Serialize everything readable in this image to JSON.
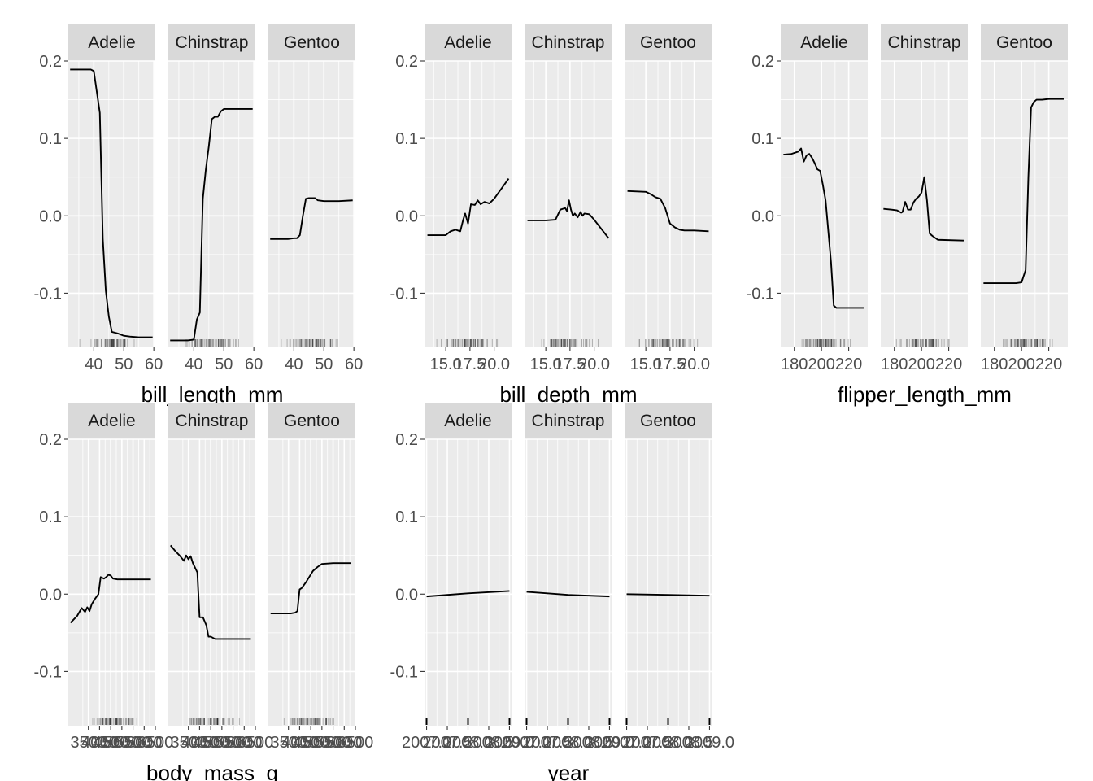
{
  "chart_data": [
    {
      "type": "line",
      "xlabel": "bill_length_mm",
      "ylabel": "",
      "ylim": [
        -0.17,
        0.2
      ],
      "yticks": [
        -0.1,
        0.0,
        0.1,
        0.2
      ],
      "ytick_labels": [
        "-0.1",
        "0.0",
        "0.1",
        "0.2"
      ],
      "xlim": [
        31.5,
        60.5
      ],
      "xticks": [
        40,
        50,
        60
      ],
      "xtick_labels": [
        "40",
        "50",
        "60"
      ],
      "legend": "none",
      "grid": true,
      "rug": true,
      "panels": [
        {
          "facet": "Adelie",
          "x": [
            32.1,
            35,
            37,
            39,
            40,
            41,
            42,
            43,
            44,
            45,
            46,
            48,
            50,
            52,
            55,
            59.6
          ],
          "y": [
            0.189,
            0.189,
            0.189,
            0.189,
            0.187,
            0.16,
            0.133,
            -0.03,
            -0.097,
            -0.13,
            -0.15,
            -0.152,
            -0.155,
            -0.156,
            -0.157,
            -0.157
          ]
        },
        {
          "facet": "Chinstrap",
          "x": [
            32.1,
            35,
            38,
            40,
            41,
            42,
            43,
            44,
            45,
            46,
            47,
            48,
            49,
            50,
            51,
            55,
            59.6
          ],
          "y": [
            -0.161,
            -0.161,
            -0.161,
            -0.16,
            -0.134,
            -0.125,
            0.022,
            0.06,
            0.09,
            0.125,
            0.128,
            0.128,
            0.135,
            0.138,
            0.138,
            0.138,
            0.138
          ]
        },
        {
          "facet": "Gentoo",
          "x": [
            32.1,
            38,
            40,
            41,
            42,
            43,
            44,
            45,
            46,
            47,
            48,
            50,
            55,
            59.6
          ],
          "y": [
            -0.03,
            -0.03,
            -0.029,
            -0.029,
            -0.025,
            0.0,
            0.022,
            0.023,
            0.023,
            0.023,
            0.02,
            0.019,
            0.019,
            0.02
          ]
        }
      ]
    },
    {
      "type": "line",
      "xlabel": "bill_depth_mm",
      "ylabel": "",
      "ylim": [
        -0.17,
        0.2
      ],
      "yticks": [
        -0.1,
        0.0,
        0.1,
        0.2
      ],
      "ytick_labels": [
        "-0.1",
        "0.0",
        "0.1",
        "0.2"
      ],
      "xlim": [
        12.8,
        21.8
      ],
      "xticks": [
        15.0,
        17.5,
        20.0
      ],
      "xtick_labels": [
        "15.0",
        "17.5",
        "20.0"
      ],
      "legend": "none",
      "grid": true,
      "rug": true,
      "panels": [
        {
          "facet": "Adelie",
          "x": [
            13.1,
            14,
            15,
            15.5,
            16,
            16.5,
            16.8,
            17,
            17.3,
            17.6,
            18,
            18.3,
            18.6,
            19,
            19.5,
            20,
            21.5
          ],
          "y": [
            -0.025,
            -0.025,
            -0.025,
            -0.02,
            -0.018,
            -0.02,
            -0.005,
            0.003,
            -0.01,
            0.015,
            0.014,
            0.02,
            0.015,
            0.018,
            0.016,
            0.022,
            0.048
          ]
        },
        {
          "facet": "Chinstrap",
          "x": [
            13.1,
            15,
            16,
            16.5,
            17,
            17.2,
            17.4,
            17.6,
            17.8,
            18,
            18.3,
            18.6,
            18.8,
            19,
            19.5,
            20,
            21.5
          ],
          "y": [
            -0.006,
            -0.006,
            -0.005,
            0.008,
            0.01,
            0.006,
            0.02,
            0.008,
            0.0,
            0.003,
            -0.002,
            0.005,
            0.0,
            0.003,
            0.002,
            -0.005,
            -0.029
          ]
        },
        {
          "facet": "Gentoo",
          "x": [
            13.1,
            15,
            15.5,
            16,
            16.5,
            17,
            17.5,
            18,
            18.5,
            19,
            20,
            21.5
          ],
          "y": [
            0.032,
            0.031,
            0.028,
            0.024,
            0.022,
            0.01,
            -0.01,
            -0.015,
            -0.018,
            -0.019,
            -0.019,
            -0.02
          ]
        }
      ]
    },
    {
      "type": "line",
      "xlabel": "flipper_length_mm",
      "ylabel": "",
      "ylim": [
        -0.17,
        0.2
      ],
      "yticks": [
        -0.1,
        0.0,
        0.1,
        0.2
      ],
      "ytick_labels": [
        "-0.1",
        "0.0",
        "0.1",
        "0.2"
      ],
      "xlim": [
        170,
        234
      ],
      "xticks": [
        180,
        200,
        220
      ],
      "xtick_labels": [
        "180",
        "200",
        "220"
      ],
      "legend": "none",
      "grid": true,
      "rug": true,
      "panels": [
        {
          "facet": "Adelie",
          "x": [
            172,
            178,
            183,
            185,
            187,
            189,
            191,
            193,
            195,
            197,
            199,
            201,
            203,
            205,
            207,
            209,
            211,
            215,
            231
          ],
          "y": [
            0.079,
            0.08,
            0.083,
            0.087,
            0.07,
            0.078,
            0.08,
            0.075,
            0.068,
            0.06,
            0.058,
            0.04,
            0.02,
            -0.02,
            -0.06,
            -0.116,
            -0.119,
            -0.119,
            -0.119
          ]
        },
        {
          "facet": "Chinstrap",
          "x": [
            172,
            178,
            182,
            185,
            186,
            188,
            190,
            192,
            194,
            196,
            198,
            200,
            202,
            204,
            206,
            208,
            212,
            231
          ],
          "y": [
            0.009,
            0.008,
            0.007,
            0.004,
            0.005,
            0.018,
            0.008,
            0.008,
            0.017,
            0.022,
            0.025,
            0.03,
            0.05,
            0.02,
            -0.023,
            -0.026,
            -0.031,
            -0.032
          ]
        },
        {
          "facet": "Gentoo",
          "x": [
            172,
            180,
            190,
            196,
            200,
            203,
            205,
            207,
            209,
            211,
            215,
            220,
            231
          ],
          "y": [
            -0.087,
            -0.087,
            -0.087,
            -0.087,
            -0.086,
            -0.07,
            0.05,
            0.14,
            0.147,
            0.15,
            0.15,
            0.151,
            0.151
          ]
        }
      ]
    },
    {
      "type": "line",
      "xlabel": "body_mass_g",
      "ylabel": "",
      "ylim": [
        -0.17,
        0.2
      ],
      "yticks": [
        -0.1,
        0.0,
        0.1,
        0.2
      ],
      "ytick_labels": [
        "-0.1",
        "0.0",
        "0.1",
        "0.2"
      ],
      "xlim": [
        2600,
        6500
      ],
      "xticks": [
        3500,
        4000,
        4500,
        5000,
        5500,
        6000,
        6500
      ],
      "xtick_labels": [
        "3500",
        "4000",
        "4500",
        "5000",
        "5500",
        "6000",
        "6500"
      ],
      "legend": "none",
      "grid": true,
      "rug": true,
      "panels": [
        {
          "facet": "Adelie",
          "x": [
            2700,
            3000,
            3200,
            3350,
            3450,
            3550,
            3650,
            3800,
            3950,
            4050,
            4200,
            4300,
            4400,
            4500,
            4600,
            4800,
            5000,
            5500,
            6300
          ],
          "y": [
            -0.037,
            -0.028,
            -0.018,
            -0.023,
            -0.017,
            -0.022,
            -0.013,
            -0.006,
            0.0,
            0.022,
            0.02,
            0.022,
            0.025,
            0.024,
            0.02,
            0.019,
            0.019,
            0.019,
            0.019
          ]
        },
        {
          "facet": "Chinstrap",
          "x": [
            2700,
            2900,
            3100,
            3300,
            3400,
            3500,
            3600,
            3700,
            3900,
            4000,
            4150,
            4300,
            4400,
            4500,
            4700,
            5000,
            5500,
            6300
          ],
          "y": [
            0.063,
            0.056,
            0.05,
            0.043,
            0.05,
            0.045,
            0.049,
            0.04,
            0.028,
            -0.03,
            -0.03,
            -0.04,
            -0.055,
            -0.055,
            -0.058,
            -0.058,
            -0.058,
            -0.058
          ]
        },
        {
          "facet": "Gentoo",
          "x": [
            2700,
            3200,
            3600,
            3800,
            3900,
            4000,
            4100,
            4300,
            4600,
            4800,
            5000,
            5500,
            6300
          ],
          "y": [
            -0.025,
            -0.025,
            -0.025,
            -0.024,
            -0.022,
            0.006,
            0.008,
            0.016,
            0.03,
            0.035,
            0.039,
            0.04,
            0.04
          ]
        }
      ]
    },
    {
      "type": "line",
      "xlabel": "year",
      "ylabel": "",
      "ylim": [
        -0.17,
        0.2
      ],
      "yticks": [
        -0.1,
        0.0,
        0.1,
        0.2
      ],
      "ytick_labels": [
        "-0.1",
        "0.0",
        "0.1",
        "0.2"
      ],
      "xlim": [
        2006.95,
        2009.05
      ],
      "xticks": [
        2007.0,
        2007.5,
        2008.0,
        2008.5,
        2009.0
      ],
      "xtick_labels": [
        "2007.0",
        "2007.5",
        "2008.0",
        "2008.5",
        "2009.0"
      ],
      "legend": "none",
      "grid": true,
      "rug": true,
      "panels": [
        {
          "facet": "Adelie",
          "x": [
            2007,
            2008,
            2009
          ],
          "y": [
            -0.003,
            0.001,
            0.004
          ]
        },
        {
          "facet": "Chinstrap",
          "x": [
            2007,
            2008,
            2009
          ],
          "y": [
            0.003,
            -0.001,
            -0.003
          ]
        },
        {
          "facet": "Gentoo",
          "x": [
            2007,
            2008,
            2009
          ],
          "y": [
            0.0,
            -0.001,
            -0.002
          ]
        }
      ]
    }
  ],
  "style": {
    "panel_background": "#ebebeb",
    "strip_background": "#d9d9d9",
    "grid_major": "#ffffff",
    "line_color": "#000000",
    "rug_color": "#000000"
  }
}
